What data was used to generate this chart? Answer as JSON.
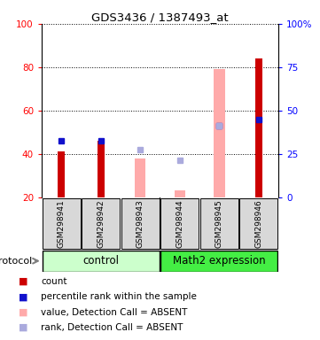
{
  "title": "GDS3436 / 1387493_at",
  "samples": [
    "GSM298941",
    "GSM298942",
    "GSM298943",
    "GSM298944",
    "GSM298945",
    "GSM298946"
  ],
  "ylim_left": [
    20,
    100
  ],
  "ylim_right": [
    0,
    100
  ],
  "yticks_left": [
    20,
    40,
    60,
    80,
    100
  ],
  "yticks_right": [
    0,
    25,
    50,
    75,
    100
  ],
  "yticklabels_right": [
    "0",
    "25",
    "50",
    "75",
    "100%"
  ],
  "red_bars": [
    41,
    46,
    null,
    null,
    null,
    84
  ],
  "blue_squares": [
    46,
    46,
    null,
    null,
    53,
    56
  ],
  "pink_bars": [
    null,
    null,
    38,
    23,
    79,
    null
  ],
  "lavender_squares": [
    null,
    null,
    42,
    37,
    53,
    null
  ],
  "red_color": "#cc0000",
  "blue_color": "#1111cc",
  "pink_color": "#ffaaaa",
  "lavender_color": "#aaaadd",
  "control_bg": "#ccffcc",
  "math2_bg": "#44ee44",
  "sample_box_bg": "#d8d8d8",
  "legend_items": [
    [
      "count",
      "#cc0000"
    ],
    [
      "percentile rank within the sample",
      "#1111cc"
    ],
    [
      "value, Detection Call = ABSENT",
      "#ffaaaa"
    ],
    [
      "rank, Detection Call = ABSENT",
      "#aaaadd"
    ]
  ]
}
